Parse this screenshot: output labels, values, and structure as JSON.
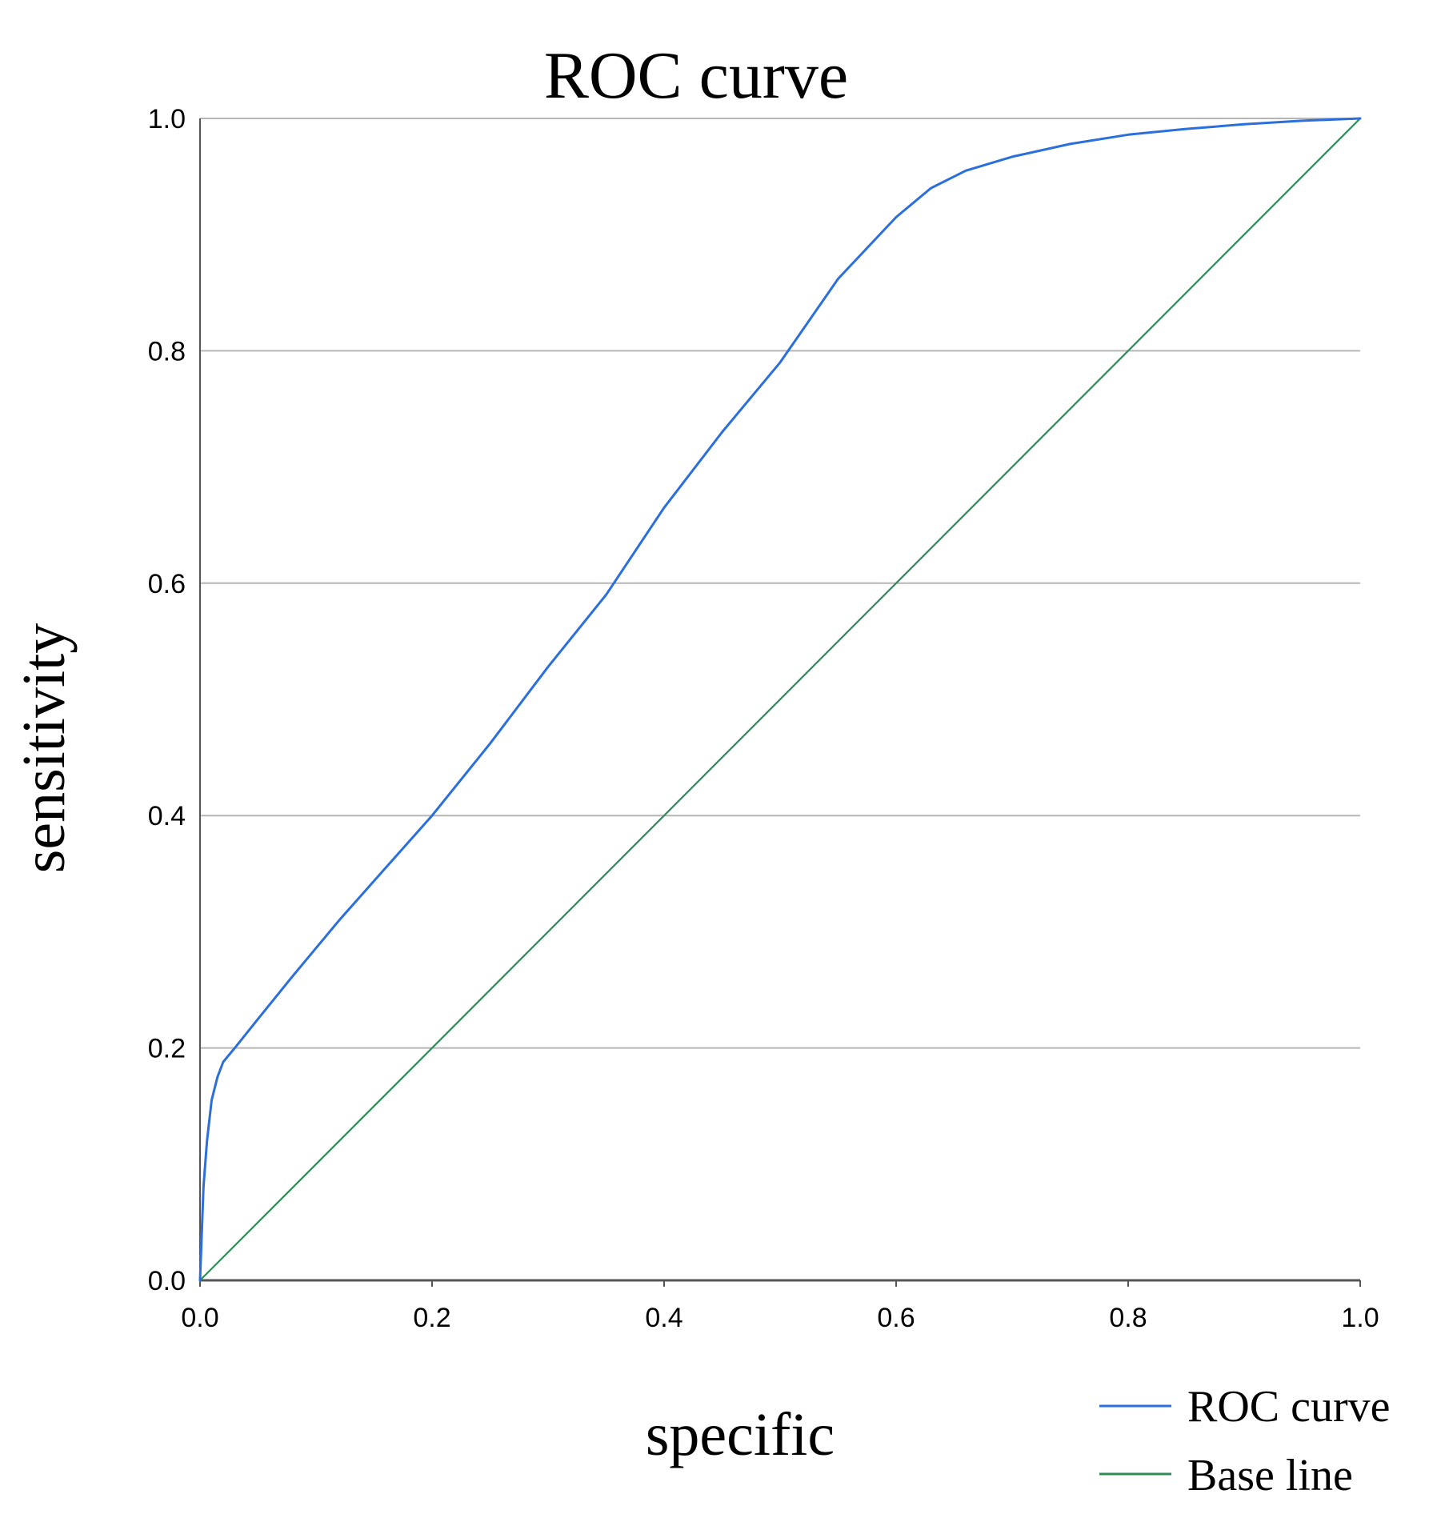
{
  "chart_data": {
    "type": "line",
    "title": "ROC curve",
    "xlabel": "specific",
    "ylabel": "sensitivity",
    "xlim": [
      0.0,
      1.0
    ],
    "ylim": [
      0.0,
      1.0
    ],
    "x_ticks": [
      "0.0",
      "0.2",
      "0.4",
      "0.6",
      "0.8",
      "1.0"
    ],
    "y_ticks": [
      "0.0",
      "0.2",
      "0.4",
      "0.6",
      "0.8",
      "1.0"
    ],
    "grid": "horizontal",
    "legend_position": "bottom-right",
    "colors": {
      "roc": "#2a6fdb",
      "base": "#2e8b57",
      "grid": "#b5b5b5",
      "axis": "#555555"
    },
    "series": [
      {
        "name": "ROC curve",
        "color": "#2a6fdb",
        "points": [
          [
            0.0,
            0.0
          ],
          [
            0.003,
            0.08
          ],
          [
            0.006,
            0.12
          ],
          [
            0.01,
            0.155
          ],
          [
            0.015,
            0.175
          ],
          [
            0.02,
            0.188
          ],
          [
            0.03,
            0.2
          ],
          [
            0.05,
            0.225
          ],
          [
            0.08,
            0.262
          ],
          [
            0.12,
            0.31
          ],
          [
            0.16,
            0.355
          ],
          [
            0.2,
            0.4
          ],
          [
            0.25,
            0.462
          ],
          [
            0.3,
            0.528
          ],
          [
            0.35,
            0.59
          ],
          [
            0.4,
            0.665
          ],
          [
            0.45,
            0.73
          ],
          [
            0.5,
            0.79
          ],
          [
            0.55,
            0.862
          ],
          [
            0.6,
            0.915
          ],
          [
            0.63,
            0.94
          ],
          [
            0.66,
            0.955
          ],
          [
            0.7,
            0.967
          ],
          [
            0.75,
            0.978
          ],
          [
            0.8,
            0.986
          ],
          [
            0.85,
            0.991
          ],
          [
            0.9,
            0.995
          ],
          [
            0.95,
            0.998
          ],
          [
            1.0,
            1.0
          ]
        ]
      },
      {
        "name": "Base line",
        "color": "#2e8b57",
        "points": [
          [
            0.0,
            0.0
          ],
          [
            1.0,
            1.0
          ]
        ]
      }
    ]
  }
}
